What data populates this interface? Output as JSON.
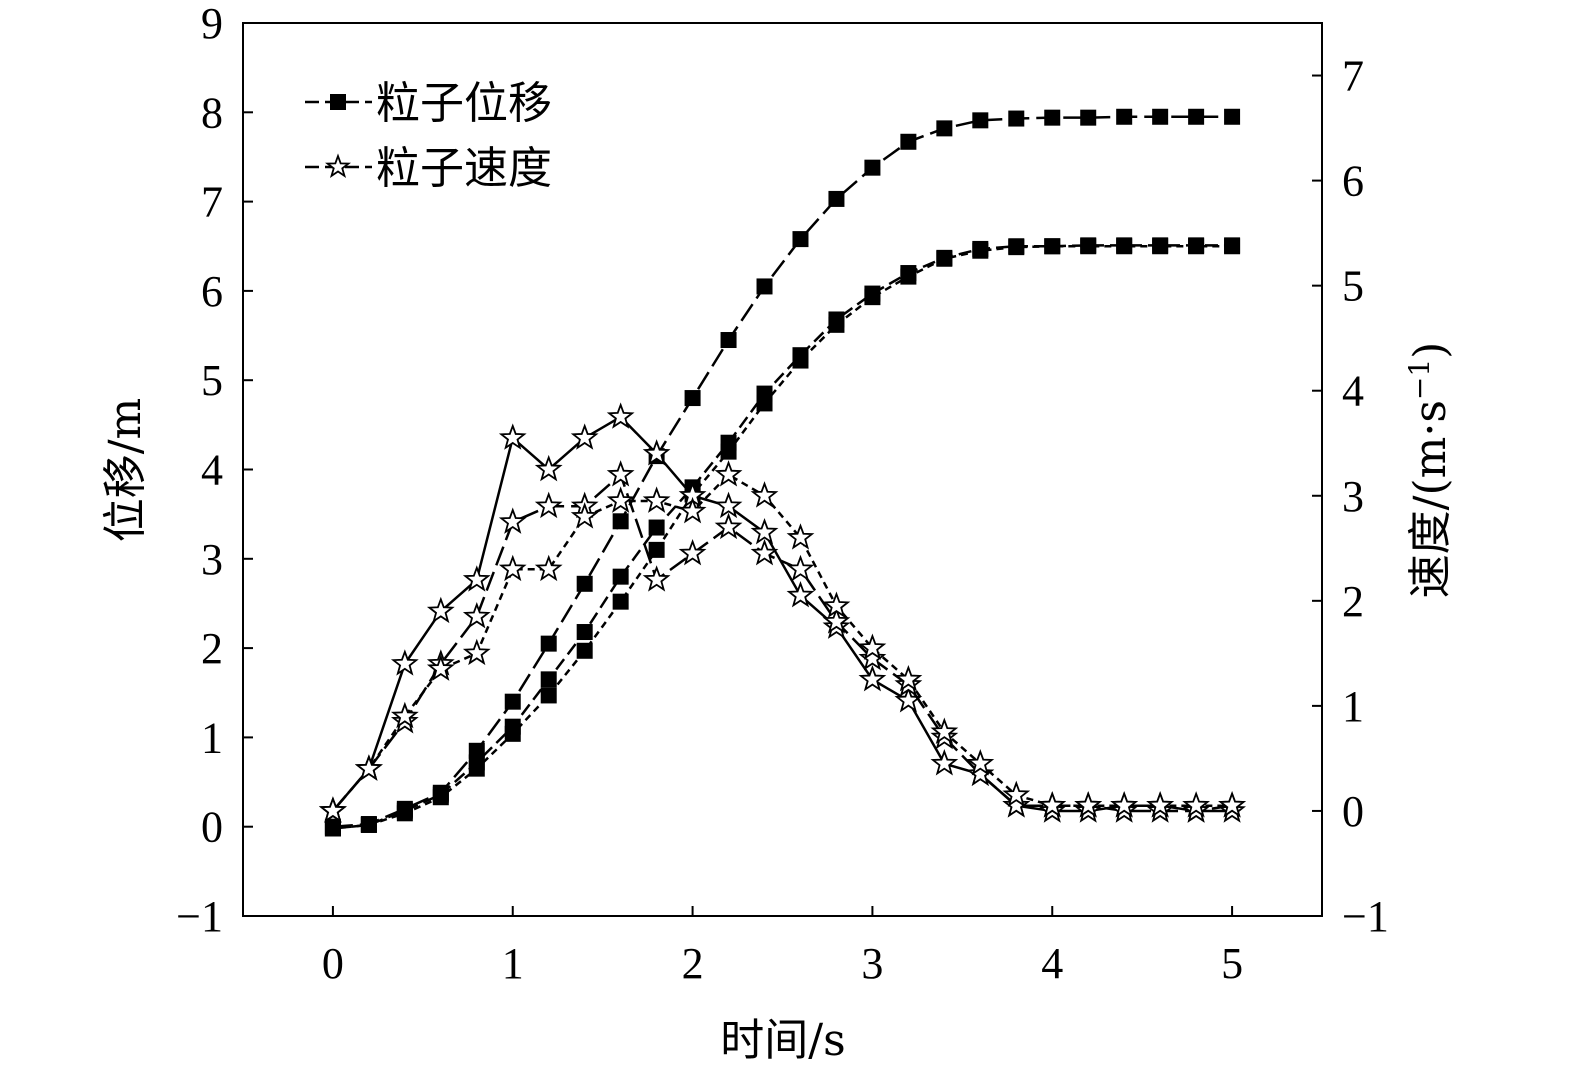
{
  "chart_data": {
    "type": "line",
    "xlabel": "时间/s",
    "ylabel_left": "位移/m",
    "ylabel_right": "速度/(m·s",
    "ylabel_right_sup": "−1",
    "ylabel_right_close": ")",
    "xlim": [
      -0.5,
      5.5
    ],
    "ylim_left": [
      -1,
      9
    ],
    "ylim_right": [
      -1,
      7.5
    ],
    "x_ticks": [
      0,
      1,
      2,
      3,
      4,
      5
    ],
    "x_tick_labels": [
      "0",
      "1",
      "2",
      "3",
      "4",
      "5"
    ],
    "y_left_ticks": [
      -1,
      0,
      1,
      2,
      3,
      4,
      5,
      6,
      7,
      8,
      9
    ],
    "y_left_tick_labels": [
      "−1",
      "0",
      "1",
      "2",
      "3",
      "4",
      "5",
      "6",
      "7",
      "8",
      "9"
    ],
    "y_right_ticks": [
      -1,
      0,
      1,
      2,
      3,
      4,
      5,
      6,
      7
    ],
    "y_right_tick_labels": [
      "−1",
      "0",
      "1",
      "2",
      "3",
      "4",
      "5",
      "6",
      "7"
    ],
    "grid": false,
    "legend_position": "top-left",
    "legend": [
      {
        "label": "粒子位移",
        "marker": "square"
      },
      {
        "label": "粒子速度",
        "marker": "star"
      }
    ],
    "series": [
      {
        "kind": "displacement",
        "axis": "left",
        "marker": "square",
        "dash": "long",
        "x": [
          0,
          0.2,
          0.4,
          0.6,
          0.8,
          1.0,
          1.2,
          1.4,
          1.6,
          1.8,
          2.0,
          2.2,
          2.4,
          2.6,
          2.8,
          3.0,
          3.2,
          3.4,
          3.6,
          3.8,
          4.0,
          4.2,
          4.4,
          4.6,
          4.8,
          5.0
        ],
        "y": [
          0,
          0.03,
          0.2,
          0.38,
          0.85,
          1.4,
          2.05,
          2.72,
          3.42,
          4.15,
          4.8,
          5.45,
          6.05,
          6.58,
          7.03,
          7.38,
          7.67,
          7.82,
          7.91,
          7.93,
          7.94,
          7.94,
          7.95,
          7.95,
          7.95,
          7.95
        ]
      },
      {
        "kind": "displacement",
        "axis": "left",
        "marker": "square",
        "dash": "medium",
        "x": [
          0,
          0.2,
          0.4,
          0.6,
          0.8,
          1.0,
          1.2,
          1.4,
          1.6,
          1.8,
          2.0,
          2.2,
          2.4,
          2.6,
          2.8,
          3.0,
          3.2,
          3.4,
          3.6,
          3.8,
          4.0,
          4.2,
          4.4,
          4.6,
          4.8,
          5.0
        ],
        "y": [
          -0.02,
          0.02,
          0.18,
          0.36,
          0.72,
          1.12,
          1.65,
          2.18,
          2.8,
          3.35,
          3.8,
          4.3,
          4.85,
          5.28,
          5.68,
          5.97,
          6.2,
          6.37,
          6.47,
          6.5,
          6.5,
          6.51,
          6.51,
          6.51,
          6.51,
          6.51
        ]
      },
      {
        "kind": "displacement",
        "axis": "left",
        "marker": "square",
        "dash": "short",
        "x": [
          0,
          0.2,
          0.4,
          0.6,
          0.8,
          1.0,
          1.2,
          1.4,
          1.6,
          1.8,
          2.0,
          2.2,
          2.4,
          2.6,
          2.8,
          3.0,
          3.2,
          3.4,
          3.6,
          3.8,
          4.0,
          4.2,
          4.4,
          4.6,
          4.8,
          5.0
        ],
        "y": [
          -0.02,
          0.02,
          0.15,
          0.33,
          0.65,
          1.04,
          1.47,
          1.97,
          2.52,
          3.1,
          3.72,
          4.2,
          4.74,
          5.22,
          5.62,
          5.93,
          6.16,
          6.36,
          6.45,
          6.49,
          6.5,
          6.5,
          6.5,
          6.5,
          6.5,
          6.5
        ]
      },
      {
        "kind": "velocity",
        "axis": "right",
        "marker": "star",
        "dash": "solid",
        "x": [
          0,
          0.2,
          0.4,
          0.6,
          0.8,
          1.0,
          1.2,
          1.4,
          1.6,
          1.8,
          2.0,
          2.2,
          2.4,
          2.6,
          2.8,
          3.0,
          3.2,
          3.4,
          3.6,
          3.8,
          4.0,
          4.2,
          4.4,
          4.6,
          4.8,
          5.0
        ],
        "y": [
          0.0,
          0.4,
          1.4,
          1.9,
          2.2,
          3.55,
          3.25,
          3.55,
          3.75,
          3.4,
          3.0,
          2.9,
          2.65,
          2.05,
          1.75,
          1.25,
          1.05,
          0.45,
          0.35,
          0.05,
          0.0,
          0.0,
          0.05,
          0.05,
          0.0,
          0.0
        ]
      },
      {
        "kind": "velocity",
        "axis": "right",
        "marker": "star",
        "dash": "long",
        "x": [
          0,
          0.2,
          0.4,
          0.6,
          0.8,
          1.0,
          1.2,
          1.4,
          1.6,
          1.8,
          2.0,
          2.2,
          2.4,
          2.6,
          2.8,
          3.0,
          3.2,
          3.4,
          3.6,
          3.8,
          4.0,
          4.2,
          4.4,
          4.6,
          4.8,
          5.0
        ],
        "y": [
          0.0,
          0.4,
          0.85,
          1.4,
          1.85,
          2.75,
          2.9,
          2.9,
          3.2,
          2.2,
          2.45,
          2.7,
          2.45,
          2.3,
          1.8,
          1.45,
          1.2,
          0.7,
          0.35,
          0.05,
          0.05,
          0.05,
          0.0,
          0.0,
          0.0,
          0.05
        ]
      },
      {
        "kind": "velocity",
        "axis": "right",
        "marker": "star",
        "dash": "short",
        "x": [
          0,
          0.2,
          0.4,
          0.6,
          0.8,
          1.0,
          1.2,
          1.4,
          1.6,
          1.8,
          2.0,
          2.2,
          2.4,
          2.6,
          2.8,
          3.0,
          3.2,
          3.4,
          3.6,
          3.8,
          4.0,
          4.2,
          4.4,
          4.6,
          4.8,
          5.0
        ],
        "y": [
          0.0,
          0.4,
          0.9,
          1.35,
          1.5,
          2.3,
          2.3,
          2.8,
          2.95,
          2.95,
          2.85,
          3.2,
          3.0,
          2.6,
          1.95,
          1.55,
          1.25,
          0.75,
          0.45,
          0.15,
          0.05,
          0.05,
          0.05,
          0.05,
          0.05,
          0.05
        ]
      }
    ]
  }
}
